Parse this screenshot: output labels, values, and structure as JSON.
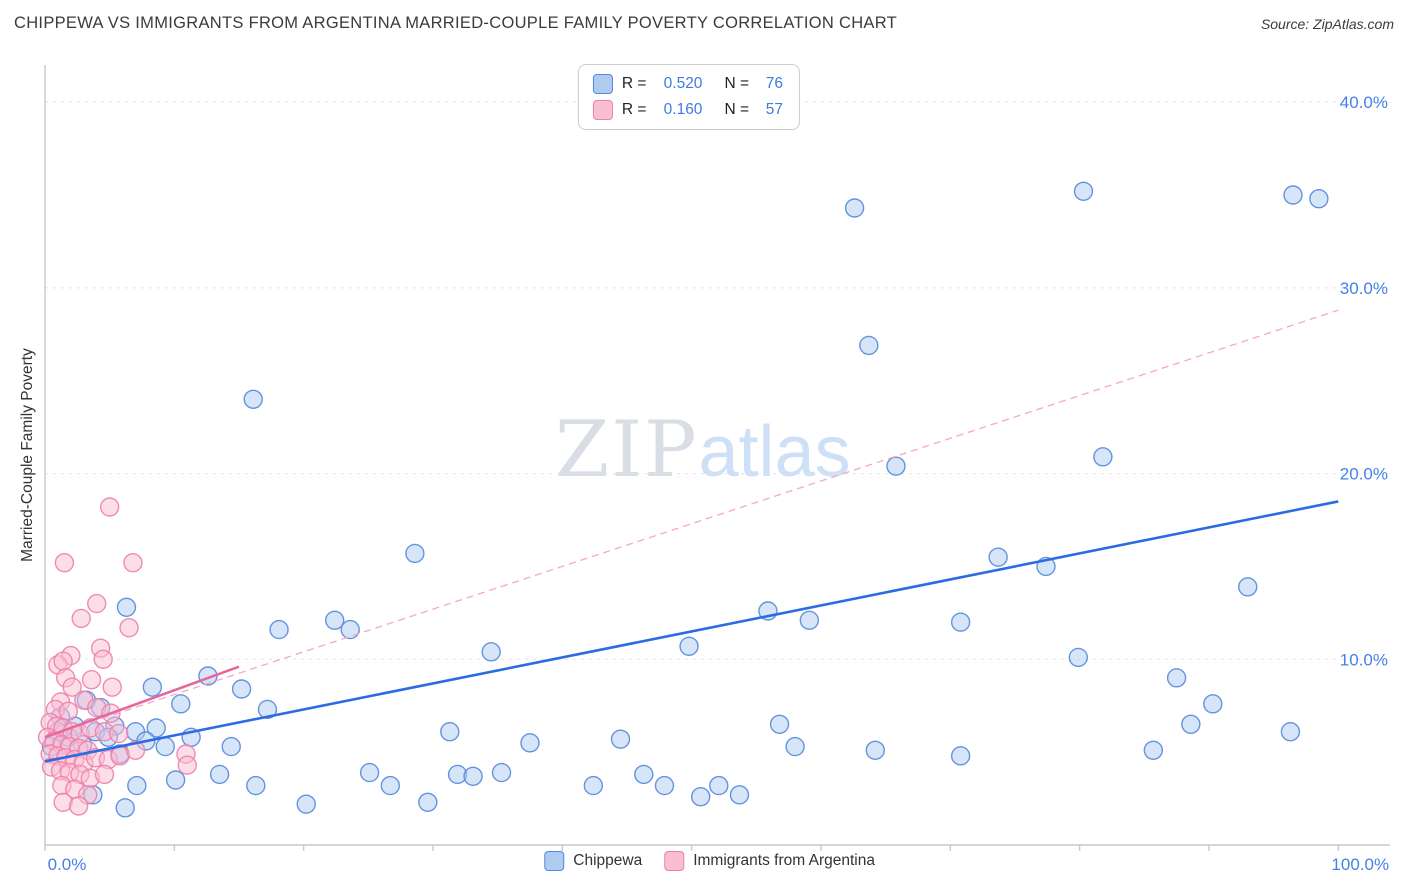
{
  "header": {
    "title": "CHIPPEWA VS IMMIGRANTS FROM ARGENTINA MARRIED-COUPLE FAMILY POVERTY CORRELATION CHART",
    "source": "Source: ZipAtlas.com"
  },
  "watermark": {
    "zip": "ZIP",
    "atlas": "atlas"
  },
  "colors": {
    "accent_blue": "#4581e8",
    "title_text": "#3b3b3b",
    "gridline": "#e2e2e2",
    "blue_trend": "#2b6be4",
    "pink_trend": "#e5679c",
    "pink_trend_dashed": "#f5a8c0"
  },
  "legend_box": {
    "rows": [
      {
        "r_label": "R =",
        "r": "0.520",
        "n_label": "N =",
        "n": "76"
      },
      {
        "r_label": "R =",
        "r": "0.160",
        "n_label": "N =",
        "n": "57"
      }
    ]
  },
  "chart_data": {
    "type": "scatter",
    "title": "CHIPPEWA VS IMMIGRANTS FROM ARGENTINA MARRIED-COUPLE FAMILY POVERTY CORRELATION CHART",
    "xlabel": "",
    "ylabel": "Married-Couple Family Poverty",
    "xlim": [
      0,
      104
    ],
    "ylim": [
      0,
      42
    ],
    "grid": "horizontal-dashed",
    "legend_position": "top-center",
    "x_ticks": [
      {
        "value": 0,
        "label": "0.0%"
      },
      {
        "value": 100,
        "label": "100.0%"
      }
    ],
    "y_ticks": [
      {
        "value": 10,
        "label": "10.0%"
      },
      {
        "value": 20,
        "label": "20.0%"
      },
      {
        "value": 30,
        "label": "30.0%"
      },
      {
        "value": 40,
        "label": "40.0%"
      }
    ],
    "series": [
      {
        "name": "Chippewa",
        "R": 0.52,
        "N": 76,
        "color": "#5588dd",
        "fill": "#aecbf0",
        "points": [
          [
            62.6,
            34.3
          ],
          [
            80.3,
            35.2
          ],
          [
            96.5,
            35.0
          ],
          [
            98.5,
            34.8
          ],
          [
            63.7,
            26.9
          ],
          [
            16.1,
            24.0
          ],
          [
            81.8,
            20.9
          ],
          [
            65.8,
            20.4
          ],
          [
            28.6,
            15.7
          ],
          [
            73.7,
            15.5
          ],
          [
            77.4,
            15.0
          ],
          [
            93.0,
            13.9
          ],
          [
            18.1,
            11.6
          ],
          [
            22.4,
            12.1
          ],
          [
            23.6,
            11.6
          ],
          [
            55.9,
            12.6
          ],
          [
            59.1,
            12.1
          ],
          [
            70.8,
            12.0
          ],
          [
            34.5,
            10.4
          ],
          [
            49.8,
            10.7
          ],
          [
            79.9,
            10.1
          ],
          [
            6.3,
            12.8
          ],
          [
            12.6,
            9.1
          ],
          [
            87.5,
            9.0
          ],
          [
            90.3,
            7.6
          ],
          [
            15.2,
            8.4
          ],
          [
            8.3,
            8.5
          ],
          [
            10.5,
            7.6
          ],
          [
            17.2,
            7.3
          ],
          [
            3.2,
            7.8
          ],
          [
            4.3,
            7.4
          ],
          [
            1.2,
            6.9
          ],
          [
            2.3,
            6.4
          ],
          [
            3.9,
            6.1
          ],
          [
            5.4,
            6.4
          ],
          [
            7.0,
            6.1
          ],
          [
            8.6,
            6.3
          ],
          [
            31.3,
            6.1
          ],
          [
            37.5,
            5.5
          ],
          [
            44.5,
            5.7
          ],
          [
            56.8,
            6.5
          ],
          [
            58.0,
            5.3
          ],
          [
            64.2,
            5.1
          ],
          [
            70.8,
            4.8
          ],
          [
            88.6,
            6.5
          ],
          [
            96.3,
            6.1
          ],
          [
            85.7,
            5.1
          ],
          [
            31.9,
            3.8
          ],
          [
            33.1,
            3.7
          ],
          [
            35.3,
            3.9
          ],
          [
            42.4,
            3.2
          ],
          [
            46.3,
            3.8
          ],
          [
            47.9,
            3.2
          ],
          [
            50.7,
            2.6
          ],
          [
            52.1,
            3.2
          ],
          [
            53.7,
            2.7
          ],
          [
            25.1,
            3.9
          ],
          [
            26.7,
            3.2
          ],
          [
            20.2,
            2.2
          ],
          [
            29.6,
            2.3
          ],
          [
            7.1,
            3.2
          ],
          [
            10.1,
            3.5
          ],
          [
            13.5,
            3.8
          ],
          [
            3.7,
            2.7
          ],
          [
            6.2,
            2.0
          ],
          [
            16.3,
            3.2
          ],
          [
            7.8,
            5.6
          ],
          [
            9.3,
            5.3
          ],
          [
            11.3,
            5.8
          ],
          [
            14.4,
            5.3
          ],
          [
            1.8,
            5.8
          ],
          [
            2.9,
            5.4
          ],
          [
            4.9,
            5.8
          ],
          [
            0.5,
            5.3
          ],
          [
            1.0,
            6.1
          ],
          [
            5.8,
            4.9
          ]
        ]
      },
      {
        "name": "Immigrants from Argentina",
        "R": 0.16,
        "N": 57,
        "color": "#ef7fa8",
        "fill": "#f9bed3",
        "points": [
          [
            1.5,
            15.2
          ],
          [
            5.0,
            18.2
          ],
          [
            6.8,
            15.2
          ],
          [
            2.8,
            12.2
          ],
          [
            4.0,
            13.0
          ],
          [
            6.5,
            11.7
          ],
          [
            2.0,
            10.2
          ],
          [
            1.0,
            9.7
          ],
          [
            1.4,
            9.9
          ],
          [
            4.3,
            10.6
          ],
          [
            4.5,
            10.0
          ],
          [
            3.6,
            8.9
          ],
          [
            1.6,
            9.0
          ],
          [
            2.1,
            8.5
          ],
          [
            5.2,
            8.5
          ],
          [
            3.0,
            7.8
          ],
          [
            1.2,
            7.7
          ],
          [
            0.8,
            7.3
          ],
          [
            1.8,
            7.2
          ],
          [
            4.0,
            7.4
          ],
          [
            5.1,
            7.1
          ],
          [
            0.4,
            6.6
          ],
          [
            0.9,
            6.4
          ],
          [
            1.4,
            6.3
          ],
          [
            2.1,
            6.1
          ],
          [
            2.7,
            6.0
          ],
          [
            3.5,
            6.3
          ],
          [
            4.6,
            6.1
          ],
          [
            5.7,
            6.0
          ],
          [
            0.2,
            5.8
          ],
          [
            0.7,
            5.6
          ],
          [
            1.3,
            5.4
          ],
          [
            1.9,
            5.3
          ],
          [
            2.6,
            5.2
          ],
          [
            3.3,
            5.1
          ],
          [
            0.4,
            4.9
          ],
          [
            1.0,
            4.8
          ],
          [
            1.6,
            4.7
          ],
          [
            2.3,
            4.6
          ],
          [
            3.0,
            4.4
          ],
          [
            3.9,
            4.7
          ],
          [
            4.9,
            4.6
          ],
          [
            5.8,
            4.8
          ],
          [
            7.0,
            5.1
          ],
          [
            10.9,
            4.9
          ],
          [
            0.5,
            4.2
          ],
          [
            1.2,
            4.0
          ],
          [
            1.9,
            3.9
          ],
          [
            2.7,
            3.8
          ],
          [
            3.5,
            3.6
          ],
          [
            4.6,
            3.8
          ],
          [
            1.3,
            3.2
          ],
          [
            2.3,
            3.0
          ],
          [
            3.3,
            2.7
          ],
          [
            1.4,
            2.3
          ],
          [
            2.6,
            2.1
          ],
          [
            11.0,
            4.3
          ]
        ]
      }
    ],
    "trend_lines": [
      {
        "series": "Immigrants from Argentina",
        "style": "dashed",
        "x1": 0,
        "y1": 5.8,
        "x2": 100,
        "y2": 28.8,
        "color": "#f5a8c0",
        "width": 1.3
      },
      {
        "series": "Immigrants from Argentina",
        "style": "solid",
        "x1": 0,
        "y1": 5.8,
        "x2": 15,
        "y2": 9.6,
        "color": "#e5679c",
        "width": 2.6
      },
      {
        "series": "Chippewa",
        "style": "solid",
        "x1": 0,
        "y1": 4.5,
        "x2": 100,
        "y2": 18.5,
        "color": "#2b6be4",
        "width": 2.6
      }
    ]
  }
}
